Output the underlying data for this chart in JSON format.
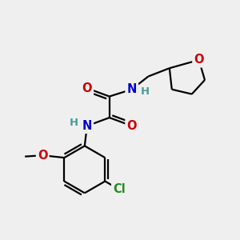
{
  "bg_color": "#efefef",
  "atom_colors": {
    "C": "#000000",
    "N": "#0000cc",
    "O": "#cc0000",
    "Cl": "#228b22",
    "H": "#4a9a9a"
  },
  "bond_color": "#000000",
  "bond_width": 1.6,
  "font_size_atom": 10.5,
  "font_size_H": 9.5
}
